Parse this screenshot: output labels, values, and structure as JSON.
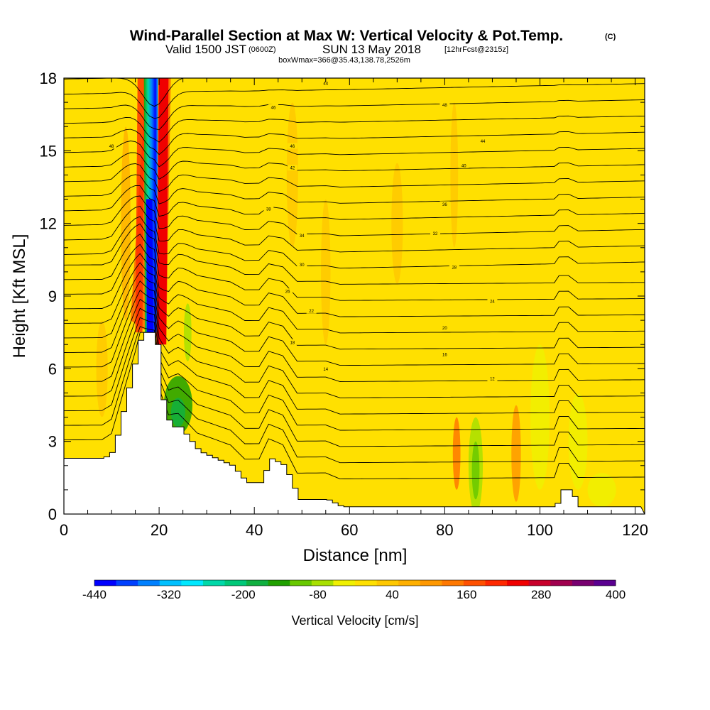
{
  "title": {
    "main": "Wind-Parallel Section at Max W: Vertical Velocity & Pot.Temp.",
    "copyright": "(C)",
    "valid_prefix": "Valid 1500 JST",
    "valid_utc": "(0600Z)",
    "valid_date": "SUN 13 May 2018",
    "forecast": "[12hrFcst@2315z]",
    "box_info": "boxWmax=366@35.43,138.78,2526m"
  },
  "chart_data": {
    "type": "heatmap",
    "xlabel": "Distance [nm]",
    "ylabel": "Height [Kft MSL]",
    "xlim": [
      0,
      122
    ],
    "ylim": [
      0,
      18
    ],
    "x_ticks": [
      "0",
      "20",
      "40",
      "60",
      "80",
      "100",
      "120"
    ],
    "y_ticks": [
      "0",
      "3",
      "6",
      "9",
      "12",
      "15",
      "18"
    ],
    "colorbar": {
      "label": "Vertical Velocity [cm/s]",
      "tick_labels": [
        "-440",
        "-320",
        "-200",
        "-80",
        "40",
        "160",
        "280",
        "400"
      ],
      "range": [
        -440,
        400
      ],
      "colors": [
        "#0000ff",
        "#0040ff",
        "#0080ff",
        "#00c0ff",
        "#00e8ff",
        "#00d8a8",
        "#00c878",
        "#10b040",
        "#20a000",
        "#68c800",
        "#a8e000",
        "#f0f000",
        "#ffe000",
        "#ffc800",
        "#ffb000",
        "#ff9800",
        "#ff7800",
        "#ff5000",
        "#ff2800",
        "#f00000",
        "#c8002a",
        "#a0004e",
        "#780070",
        "#5a0090"
      ]
    },
    "terrain_profile": [
      [
        0,
        2.3
      ],
      [
        8,
        2.3
      ],
      [
        10,
        2.6
      ],
      [
        16,
        7.5
      ],
      [
        19,
        7.5
      ],
      [
        20,
        5.0
      ],
      [
        22,
        3.6
      ],
      [
        24,
        3.6
      ],
      [
        28,
        2.6
      ],
      [
        35,
        2.0
      ],
      [
        38,
        1.3
      ],
      [
        41,
        1.3
      ],
      [
        43,
        2.3
      ],
      [
        46,
        2.0
      ],
      [
        49,
        0.6
      ],
      [
        55,
        0.6
      ],
      [
        58,
        0.3
      ],
      [
        72,
        0.3
      ],
      [
        103,
        0.3
      ],
      [
        104,
        1.0
      ],
      [
        106,
        1.0
      ],
      [
        108,
        0.3
      ],
      [
        122,
        0.3
      ]
    ],
    "updraft_max": 366,
    "contour_labels": [
      "44",
      "46",
      "48",
      "48",
      "46",
      "44",
      "42",
      "40",
      "38",
      "36",
      "34",
      "32",
      "30",
      "28",
      "26",
      "24",
      "22",
      "20",
      "18",
      "16",
      "14",
      "12"
    ]
  }
}
